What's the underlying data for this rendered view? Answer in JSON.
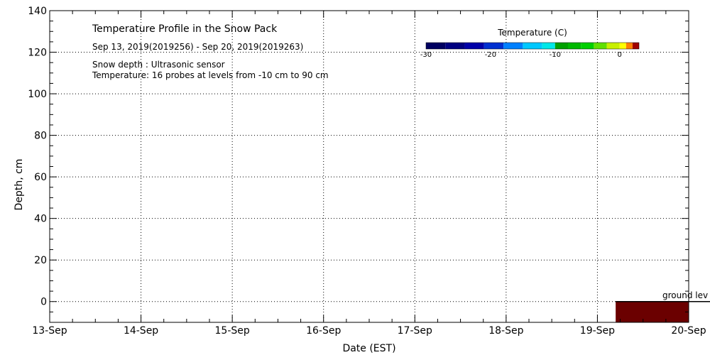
{
  "chart_data": {
    "type": "heatmap",
    "title": "Temperature Profile in the Snow Pack",
    "subtitle": "Sep 13, 2019(2019256) - Sep 20, 2019(2019263)",
    "annotations": [
      "Snow depth : Ultrasonic sensor",
      "Temperature: 16 probes at levels from -10 cm to 90 cm"
    ],
    "xlabel": "Date (EST)",
    "ylabel": "Depth, cm",
    "x_ticks": [
      "13-Sep",
      "14-Sep",
      "15-Sep",
      "16-Sep",
      "17-Sep",
      "18-Sep",
      "19-Sep",
      "20-Sep"
    ],
    "xlim": [
      0,
      7
    ],
    "ylim": [
      -10,
      140
    ],
    "y_ticks": [
      0,
      20,
      40,
      60,
      80,
      100,
      120,
      140
    ],
    "y_tick_labels": [
      "0",
      "20",
      "40",
      "60",
      "80",
      "100",
      "120",
      "140"
    ],
    "grid": true,
    "ground_level_label": "ground lev",
    "ground_level_y": 0,
    "temperature_block": {
      "x_start": 6.2,
      "x_end": 7.0,
      "y_top": 0,
      "y_bottom": -10,
      "color": "#6b0000"
    },
    "colorbar": {
      "title": "Temperature (C)",
      "min": -30,
      "max": 3,
      "tick_values": [
        -30,
        -20,
        -10,
        0
      ],
      "tick_labels": [
        "-30",
        "-20",
        "-10",
        "0"
      ],
      "legend_placement": "top-right",
      "segments": [
        {
          "from": -30,
          "to": -27,
          "color": "#000060"
        },
        {
          "from": -27,
          "to": -24,
          "color": "#000080"
        },
        {
          "from": -24,
          "to": -21,
          "color": "#0000a8"
        },
        {
          "from": -21,
          "to": -18,
          "color": "#0030d0"
        },
        {
          "from": -18,
          "to": -15,
          "color": "#0080ff"
        },
        {
          "from": -15,
          "to": -12,
          "color": "#00c8ff"
        },
        {
          "from": -12,
          "to": -10,
          "color": "#00e8e8"
        },
        {
          "from": -10,
          "to": -8,
          "color": "#00a000"
        },
        {
          "from": -8,
          "to": -6,
          "color": "#00b800"
        },
        {
          "from": -6,
          "to": -4,
          "color": "#00d000"
        },
        {
          "from": -4,
          "to": -2,
          "color": "#60e000"
        },
        {
          "from": -2,
          "to": 0,
          "color": "#c8f000"
        },
        {
          "from": 0,
          "to": 1,
          "color": "#ffff00"
        },
        {
          "from": 1,
          "to": 2,
          "color": "#ff8000"
        },
        {
          "from": 2,
          "to": 3,
          "color": "#a00000"
        }
      ]
    }
  }
}
